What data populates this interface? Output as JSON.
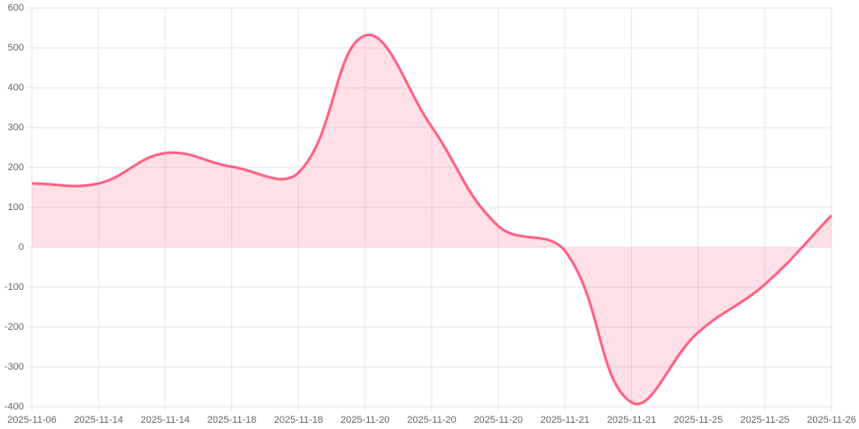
{
  "chart_data": {
    "type": "line",
    "categories": [
      "2025-11-06",
      "2025-11-14",
      "2025-11-14",
      "2025-11-18",
      "2025-11-18",
      "2025-11-20",
      "2025-11-20",
      "2025-11-20",
      "2025-11-21",
      "2025-11-21",
      "2025-11-25",
      "2025-11-25",
      "2025-11-26"
    ],
    "series": [
      {
        "color": "#ff6384",
        "values": [
          160,
          160,
          236,
          202,
          187,
          531,
          302,
          53,
          -9,
          -389,
          -213,
          -93,
          80
        ]
      }
    ],
    "ylim": [
      -400,
      600
    ],
    "yticks": [
      -400,
      -300,
      -200,
      -100,
      0,
      100,
      200,
      300,
      400,
      500,
      600
    ],
    "grid": true,
    "fill": true
  }
}
